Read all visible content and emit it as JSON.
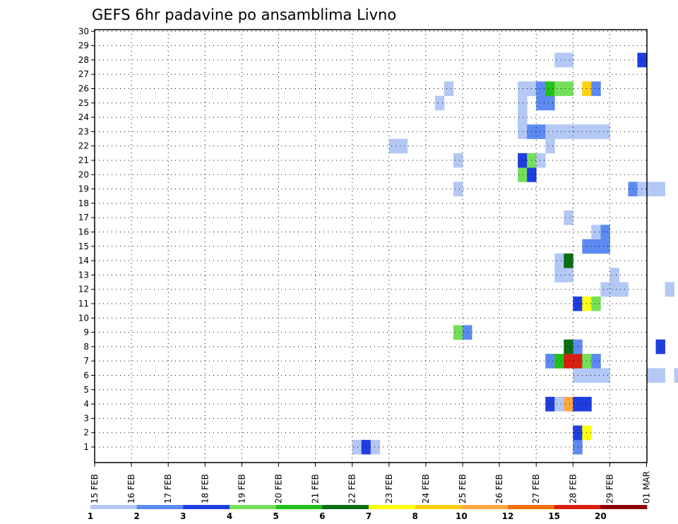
{
  "chart_data": {
    "type": "heatmap",
    "title": "GEFS 6hr padavine po ansamblima Livno",
    "y_ticks": [
      "1",
      "2",
      "3",
      "4",
      "5",
      "6",
      "7",
      "8",
      "9",
      "10",
      "11",
      "12",
      "13",
      "14",
      "15",
      "16",
      "17",
      "18",
      "19",
      "20",
      "21",
      "22",
      "23",
      "24",
      "25",
      "26",
      "27",
      "28",
      "29",
      "30"
    ],
    "x_ticks": [
      "15 FEB",
      "16 FEB",
      "17 FEB",
      "18 FEB",
      "19 FEB",
      "20 FEB",
      "21 FEB",
      "22 FEB",
      "23 FEB",
      "24 FEB",
      "25 FEB",
      "26 FEB",
      "27 FEB",
      "28 FEB",
      "29 FEB",
      "01 MAR"
    ],
    "steps_per_day": 4,
    "n_steps": 60,
    "colorbar": {
      "labels": [
        "1",
        "2",
        "3",
        "4",
        "5",
        "6",
        "7",
        "8",
        "10",
        "12",
        "15",
        "20"
      ],
      "colors": [
        "#b3c8f5",
        "#5c8af0",
        "#1f3ee0",
        "#74e05a",
        "#22c01a",
        "#0b6e12",
        "#ffff10",
        "#ffd010",
        "#ffa640",
        "#f07010",
        "#d82010",
        "#8b0000"
      ]
    },
    "grid": true,
    "grid_style": "dotted",
    "cells": [
      [
        1,
        28,
        1
      ],
      [
        1,
        29,
        3
      ],
      [
        1,
        30,
        1
      ],
      [
        1,
        52,
        2
      ],
      [
        2,
        52,
        3
      ],
      [
        2,
        53,
        7
      ],
      [
        2,
        71,
        5
      ],
      [
        2,
        72,
        5
      ],
      [
        2,
        73,
        6
      ],
      [
        2,
        74,
        6
      ],
      [
        2,
        75,
        3
      ],
      [
        3,
        67,
        5
      ],
      [
        3,
        68,
        3
      ],
      [
        3,
        69,
        3
      ],
      [
        3,
        80,
        1
      ],
      [
        3,
        81,
        5
      ],
      [
        3,
        82,
        3
      ],
      [
        3,
        83,
        3
      ],
      [
        3,
        84,
        1
      ],
      [
        3,
        85,
        1
      ],
      [
        3,
        86,
        6
      ],
      [
        4,
        49,
        3
      ],
      [
        4,
        50,
        1
      ],
      [
        4,
        51,
        9
      ],
      [
        4,
        52,
        3
      ],
      [
        4,
        53,
        3
      ],
      [
        4,
        65,
        1
      ],
      [
        4,
        66,
        2
      ],
      [
        4,
        67,
        9
      ],
      [
        4,
        68,
        12
      ],
      [
        4,
        69,
        7
      ],
      [
        4,
        72,
        1
      ],
      [
        4,
        73,
        11
      ],
      [
        4,
        74,
        1
      ],
      [
        4,
        75,
        10
      ],
      [
        4,
        76,
        2
      ],
      [
        4,
        77,
        10
      ],
      [
        4,
        78,
        11
      ],
      [
        4,
        79,
        11
      ],
      [
        4,
        80,
        11
      ],
      [
        4,
        81,
        3
      ],
      [
        4,
        82,
        1
      ],
      [
        4,
        86,
        7
      ],
      [
        5,
        65,
        2
      ],
      [
        5,
        66,
        9
      ],
      [
        5,
        67,
        11
      ],
      [
        5,
        70,
        2
      ],
      [
        5,
        72,
        1
      ],
      [
        5,
        73,
        12
      ],
      [
        5,
        74,
        1
      ],
      [
        5,
        76,
        4
      ],
      [
        5,
        77,
        1
      ],
      [
        5,
        82,
        1
      ],
      [
        6,
        52,
        1
      ],
      [
        6,
        53,
        1
      ],
      [
        6,
        54,
        1
      ],
      [
        6,
        55,
        1
      ],
      [
        6,
        60,
        1
      ],
      [
        6,
        61,
        1
      ],
      [
        6,
        63,
        1
      ],
      [
        6,
        64,
        1
      ],
      [
        6,
        74,
        6
      ],
      [
        6,
        75,
        1
      ],
      [
        6,
        76,
        2
      ],
      [
        6,
        77,
        4
      ],
      [
        6,
        78,
        1
      ],
      [
        6,
        79,
        1
      ],
      [
        6,
        80,
        1
      ],
      [
        6,
        82,
        1
      ],
      [
        6,
        83,
        1
      ],
      [
        7,
        49,
        2
      ],
      [
        7,
        50,
        5
      ],
      [
        7,
        51,
        11
      ],
      [
        7,
        52,
        11
      ],
      [
        7,
        53,
        4
      ],
      [
        7,
        54,
        2
      ],
      [
        7,
        64,
        2
      ],
      [
        7,
        65,
        12
      ],
      [
        7,
        66,
        6
      ],
      [
        7,
        67,
        11
      ],
      [
        7,
        68,
        10
      ],
      [
        7,
        69,
        10
      ],
      [
        7,
        70,
        7
      ],
      [
        7,
        71,
        1
      ],
      [
        8,
        51,
        6
      ],
      [
        8,
        52,
        2
      ],
      [
        8,
        61,
        3
      ],
      [
        8,
        72,
        10
      ],
      [
        8,
        73,
        12
      ],
      [
        8,
        74,
        11
      ],
      [
        8,
        75,
        2
      ],
      [
        8,
        76,
        2
      ],
      [
        8,
        77,
        1
      ],
      [
        9,
        39,
        4
      ],
      [
        9,
        40,
        2
      ],
      [
        9,
        67,
        4
      ],
      [
        9,
        68,
        5
      ],
      [
        9,
        69,
        5
      ],
      [
        9,
        70,
        11
      ],
      [
        9,
        71,
        3
      ],
      [
        9,
        72,
        1
      ],
      [
        9,
        73,
        1
      ],
      [
        9,
        74,
        6
      ],
      [
        9,
        75,
        3
      ],
      [
        9,
        76,
        4
      ],
      [
        9,
        77,
        12
      ],
      [
        9,
        78,
        2
      ],
      [
        9,
        79,
        2
      ],
      [
        9,
        80,
        2
      ],
      [
        9,
        81,
        2
      ],
      [
        9,
        82,
        4
      ],
      [
        9,
        83,
        6
      ],
      [
        9,
        84,
        2
      ],
      [
        10,
        66,
        1
      ],
      [
        10,
        67,
        2
      ],
      [
        10,
        70,
        2
      ],
      [
        10,
        71,
        9
      ],
      [
        10,
        72,
        2
      ],
      [
        10,
        73,
        3
      ],
      [
        10,
        74,
        1
      ],
      [
        10,
        75,
        1
      ],
      [
        10,
        76,
        1
      ],
      [
        11,
        52,
        3
      ],
      [
        11,
        53,
        7
      ],
      [
        11,
        54,
        4
      ],
      [
        11,
        66,
        3
      ],
      [
        11,
        67,
        4
      ],
      [
        11,
        68,
        12
      ],
      [
        11,
        69,
        12
      ],
      [
        11,
        70,
        1
      ],
      [
        11,
        73,
        2
      ],
      [
        11,
        83,
        2
      ],
      [
        11,
        84,
        1
      ],
      [
        11,
        85,
        1
      ],
      [
        12,
        55,
        1
      ],
      [
        12,
        56,
        1
      ],
      [
        12,
        57,
        1
      ],
      [
        12,
        62,
        1
      ],
      [
        12,
        66,
        1
      ],
      [
        12,
        67,
        12
      ],
      [
        12,
        68,
        2
      ],
      [
        12,
        69,
        1
      ],
      [
        12,
        70,
        9
      ],
      [
        12,
        72,
        1
      ],
      [
        12,
        73,
        1
      ],
      [
        12,
        74,
        1
      ],
      [
        12,
        76,
        2
      ],
      [
        12,
        79,
        2
      ],
      [
        12,
        80,
        2
      ],
      [
        12,
        81,
        2
      ],
      [
        12,
        82,
        2
      ],
      [
        12,
        83,
        1
      ],
      [
        12,
        84,
        1
      ],
      [
        13,
        50,
        1
      ],
      [
        13,
        51,
        1
      ],
      [
        13,
        56,
        1
      ],
      [
        13,
        68,
        2
      ],
      [
        13,
        69,
        3
      ],
      [
        13,
        70,
        3
      ],
      [
        13,
        71,
        3
      ],
      [
        13,
        72,
        5
      ],
      [
        13,
        73,
        5
      ],
      [
        13,
        74,
        9
      ],
      [
        13,
        75,
        10
      ],
      [
        13,
        76,
        1
      ],
      [
        13,
        77,
        1
      ],
      [
        13,
        82,
        1
      ],
      [
        13,
        83,
        4
      ],
      [
        13,
        84,
        9
      ],
      [
        13,
        85,
        3
      ],
      [
        13,
        86,
        2
      ],
      [
        14,
        50,
        1
      ],
      [
        14,
        51,
        6
      ],
      [
        14,
        67,
        3
      ],
      [
        14,
        68,
        2
      ],
      [
        14,
        69,
        1
      ],
      [
        14,
        70,
        4
      ],
      [
        14,
        71,
        2
      ],
      [
        14,
        72,
        1
      ],
      [
        14,
        73,
        2
      ],
      [
        14,
        74,
        1
      ],
      [
        14,
        75,
        1
      ],
      [
        14,
        76,
        9
      ],
      [
        14,
        77,
        6
      ],
      [
        14,
        78,
        4
      ],
      [
        14,
        79,
        2
      ],
      [
        14,
        82,
        1
      ],
      [
        14,
        86,
        4
      ],
      [
        15,
        53,
        2
      ],
      [
        15,
        54,
        2
      ],
      [
        15,
        55,
        2
      ],
      [
        15,
        67,
        1
      ],
      [
        15,
        68,
        2
      ],
      [
        15,
        69,
        7
      ],
      [
        15,
        70,
        9
      ],
      [
        15,
        71,
        3
      ],
      [
        15,
        72,
        2
      ],
      [
        15,
        73,
        3
      ],
      [
        15,
        74,
        2
      ],
      [
        15,
        75,
        1
      ],
      [
        15,
        80,
        1
      ],
      [
        16,
        54,
        1
      ],
      [
        16,
        55,
        2
      ],
      [
        16,
        64,
        1
      ],
      [
        16,
        72,
        1
      ],
      [
        16,
        80,
        1
      ],
      [
        17,
        51,
        1
      ],
      [
        17,
        68,
        2
      ],
      [
        17,
        69,
        2
      ],
      [
        17,
        70,
        6
      ],
      [
        17,
        71,
        11
      ],
      [
        17,
        79,
        2
      ],
      [
        17,
        80,
        10
      ],
      [
        17,
        81,
        11
      ],
      [
        17,
        82,
        12
      ],
      [
        17,
        83,
        12
      ],
      [
        17,
        84,
        2
      ],
      [
        17,
        85,
        1
      ],
      [
        17,
        86,
        3
      ],
      [
        17,
        87,
        4
      ],
      [
        18,
        76,
        1
      ],
      [
        18,
        79,
        2
      ],
      [
        18,
        80,
        10
      ],
      [
        18,
        81,
        6
      ],
      [
        18,
        83,
        1
      ],
      [
        18,
        84,
        1
      ],
      [
        19,
        39,
        1
      ],
      [
        19,
        58,
        2
      ],
      [
        19,
        59,
        1
      ],
      [
        19,
        60,
        1
      ],
      [
        19,
        61,
        1
      ],
      [
        19,
        68,
        7
      ],
      [
        19,
        69,
        6
      ],
      [
        19,
        70,
        6
      ],
      [
        19,
        74,
        4
      ],
      [
        19,
        75,
        2
      ],
      [
        19,
        80,
        1
      ],
      [
        19,
        82,
        1
      ],
      [
        20,
        46,
        4
      ],
      [
        20,
        47,
        3
      ],
      [
        20,
        68,
        1
      ],
      [
        20,
        69,
        4
      ],
      [
        20,
        72,
        2
      ],
      [
        20,
        73,
        2
      ],
      [
        20,
        78,
        2
      ],
      [
        20,
        81,
        1
      ],
      [
        20,
        82,
        1
      ],
      [
        20,
        83,
        1
      ],
      [
        21,
        39,
        1
      ],
      [
        21,
        46,
        3
      ],
      [
        21,
        47,
        4
      ],
      [
        21,
        48,
        1
      ],
      [
        21,
        68,
        2
      ],
      [
        21,
        69,
        3
      ],
      [
        21,
        70,
        1
      ],
      [
        21,
        71,
        1
      ],
      [
        21,
        72,
        1
      ],
      [
        22,
        32,
        1
      ],
      [
        22,
        33,
        1
      ],
      [
        22,
        49,
        1
      ],
      [
        22,
        65,
        1
      ],
      [
        22,
        66,
        1
      ],
      [
        22,
        74,
        2
      ],
      [
        22,
        75,
        4
      ],
      [
        22,
        78,
        9
      ],
      [
        22,
        79,
        9
      ],
      [
        22,
        80,
        6
      ],
      [
        22,
        81,
        2
      ],
      [
        22,
        82,
        1
      ],
      [
        22,
        83,
        1
      ],
      [
        22,
        85,
        2
      ],
      [
        22,
        86,
        4
      ],
      [
        23,
        46,
        1
      ],
      [
        23,
        47,
        2
      ],
      [
        23,
        48,
        2
      ],
      [
        23,
        49,
        1
      ],
      [
        23,
        50,
        1
      ],
      [
        23,
        51,
        1
      ],
      [
        23,
        52,
        1
      ],
      [
        23,
        53,
        1
      ],
      [
        23,
        54,
        1
      ],
      [
        23,
        55,
        1
      ],
      [
        23,
        74,
        2
      ],
      [
        23,
        75,
        5
      ],
      [
        23,
        76,
        9
      ],
      [
        23,
        77,
        12
      ],
      [
        23,
        78,
        11
      ],
      [
        23,
        79,
        11
      ],
      [
        23,
        80,
        2
      ],
      [
        23,
        81,
        3
      ],
      [
        23,
        82,
        7
      ],
      [
        23,
        83,
        9
      ],
      [
        23,
        84,
        2
      ],
      [
        23,
        85,
        2
      ],
      [
        23,
        86,
        2
      ],
      [
        24,
        46,
        1
      ],
      [
        24,
        71,
        1
      ],
      [
        24,
        72,
        1
      ],
      [
        24,
        73,
        1
      ],
      [
        24,
        79,
        5
      ],
      [
        24,
        80,
        5
      ],
      [
        24,
        81,
        1
      ],
      [
        25,
        37,
        1
      ],
      [
        25,
        46,
        1
      ],
      [
        25,
        48,
        2
      ],
      [
        25,
        49,
        2
      ],
      [
        25,
        66,
        1
      ],
      [
        25,
        67,
        2
      ],
      [
        25,
        68,
        2
      ],
      [
        25,
        69,
        9
      ],
      [
        25,
        70,
        12
      ],
      [
        25,
        71,
        1
      ],
      [
        25,
        72,
        2
      ],
      [
        25,
        73,
        1
      ],
      [
        25,
        74,
        1
      ],
      [
        25,
        75,
        1
      ],
      [
        25,
        79,
        5
      ],
      [
        25,
        80,
        6
      ],
      [
        25,
        81,
        9
      ],
      [
        25,
        82,
        1
      ],
      [
        25,
        83,
        1
      ],
      [
        25,
        84,
        2
      ],
      [
        25,
        85,
        3
      ],
      [
        25,
        86,
        12
      ],
      [
        26,
        38,
        1
      ],
      [
        26,
        46,
        1
      ],
      [
        26,
        47,
        1
      ],
      [
        26,
        48,
        2
      ],
      [
        26,
        49,
        5
      ],
      [
        26,
        50,
        4
      ],
      [
        26,
        51,
        4
      ],
      [
        26,
        53,
        8
      ],
      [
        26,
        54,
        2
      ],
      [
        27,
        79,
        2
      ],
      [
        27,
        80,
        6
      ],
      [
        27,
        81,
        4
      ],
      [
        27,
        82,
        4
      ],
      [
        27,
        83,
        1
      ],
      [
        27,
        84,
        1
      ],
      [
        27,
        85,
        1
      ],
      [
        28,
        50,
        1
      ],
      [
        28,
        51,
        1
      ],
      [
        28,
        59,
        3
      ],
      [
        28,
        66,
        1
      ],
      [
        28,
        67,
        1
      ],
      [
        28,
        68,
        1
      ],
      [
        28,
        69,
        1
      ],
      [
        28,
        70,
        1
      ],
      [
        28,
        71,
        1
      ],
      [
        28,
        72,
        2
      ],
      [
        28,
        73,
        2
      ],
      [
        28,
        74,
        2
      ],
      [
        28,
        75,
        2
      ],
      [
        28,
        76,
        2
      ],
      [
        28,
        79,
        11
      ],
      [
        28,
        80,
        10
      ],
      [
        28,
        81,
        11
      ],
      [
        28,
        82,
        9
      ],
      [
        28,
        83,
        10
      ],
      [
        28,
        84,
        9
      ],
      [
        28,
        85,
        3
      ],
      [
        28,
        86,
        3
      ],
      [
        28,
        87,
        3
      ]
    ]
  }
}
